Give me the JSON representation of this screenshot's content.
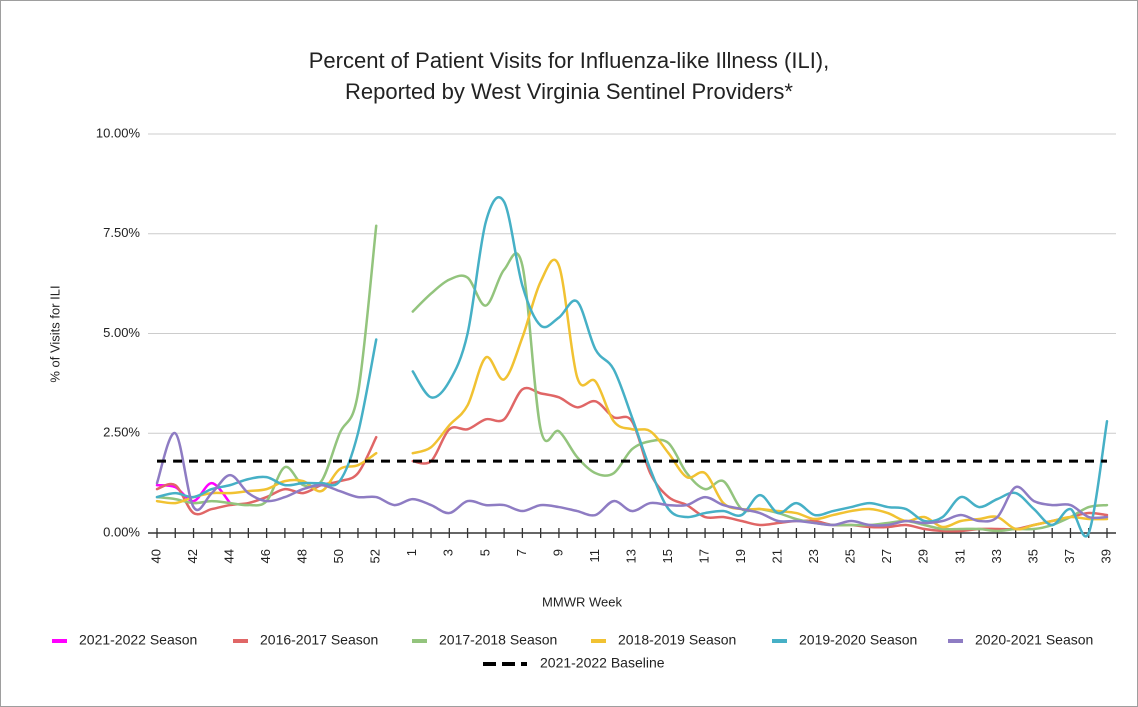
{
  "chart_data": {
    "type": "line",
    "title": [
      "Percent of Patient Visits for Influenza-like Illness (ILI),",
      "Reported by West Virginia Sentinel Providers*"
    ],
    "x_label": "MMWR Week",
    "y_label": "% of Visits for ILI",
    "categories": [
      "40",
      null,
      "42",
      null,
      "44",
      null,
      "46",
      null,
      "48",
      null,
      "50",
      null,
      "52",
      null,
      "1",
      null,
      "3",
      null,
      "5",
      null,
      "7",
      null,
      "9",
      null,
      "11",
      null,
      "13",
      null,
      "15",
      null,
      "17",
      null,
      "19",
      null,
      "21",
      null,
      "23",
      null,
      "25",
      null,
      "27",
      null,
      "29",
      null,
      "31",
      null,
      "33",
      null,
      "35",
      null,
      "37",
      null,
      "39"
    ],
    "ylim": [
      0,
      10
    ],
    "yticks": [
      {
        "value": 0,
        "label": "0.00%"
      },
      {
        "value": 2.5,
        "label": "2.50%"
      },
      {
        "value": 5,
        "label": "5.00%"
      },
      {
        "value": 7.5,
        "label": "7.50%"
      },
      {
        "value": 10,
        "label": "10.00%"
      }
    ],
    "grid": true,
    "legend": "bottom",
    "series": [
      {
        "name": "2021-2022 Season",
        "color": "#ff00ff",
        "values": [
          1.2,
          1.15,
          0.8,
          1.25,
          0.75,
          null,
          null,
          null,
          null,
          null,
          null,
          null,
          null,
          null,
          null,
          null,
          null,
          null,
          null,
          null,
          null,
          null,
          null,
          null,
          null,
          null,
          null,
          null,
          null,
          null,
          null,
          null,
          null,
          null,
          null,
          null,
          null,
          null,
          null,
          null,
          null,
          null,
          null,
          null,
          null,
          null,
          null,
          null,
          null,
          null,
          null,
          null,
          null
        ]
      },
      {
        "name": "2016-2017 Season",
        "color": "#e06666",
        "values": [
          1.1,
          1.2,
          0.5,
          0.6,
          0.7,
          0.75,
          0.9,
          1.1,
          1.0,
          1.2,
          1.3,
          1.5,
          2.4,
          null,
          1.8,
          1.8,
          2.6,
          2.6,
          2.85,
          2.85,
          3.6,
          3.5,
          3.4,
          3.15,
          3.3,
          2.9,
          2.8,
          1.5,
          0.9,
          0.7,
          0.4,
          0.4,
          0.3,
          0.2,
          0.25,
          0.3,
          0.3,
          0.2,
          0.2,
          0.15,
          0.15,
          0.2,
          0.1,
          0.05,
          0.05,
          0.1,
          0.1,
          0.1,
          0.2,
          0.3,
          0.4,
          0.5,
          0.45
        ]
      },
      {
        "name": "2017-2018 Season",
        "color": "#93c47d",
        "values": [
          0.9,
          0.85,
          0.75,
          0.8,
          0.75,
          0.7,
          0.8,
          1.65,
          1.2,
          1.3,
          2.5,
          3.5,
          7.7,
          null,
          5.55,
          6.0,
          6.35,
          6.4,
          5.7,
          6.6,
          6.7,
          2.6,
          2.55,
          1.9,
          1.5,
          1.5,
          2.1,
          2.3,
          2.25,
          1.5,
          1.1,
          1.3,
          0.6,
          0.6,
          0.5,
          0.35,
          0.25,
          0.2,
          0.2,
          0.2,
          0.25,
          0.3,
          0.2,
          0.1,
          0.1,
          0.1,
          0.05,
          0.1,
          0.1,
          0.2,
          0.4,
          0.65,
          0.7
        ]
      },
      {
        "name": "2018-2019 Season",
        "color": "#f1c232",
        "values": [
          0.8,
          0.75,
          0.9,
          1.0,
          1.0,
          1.05,
          1.1,
          1.3,
          1.3,
          1.05,
          1.6,
          1.7,
          2.0,
          null,
          2.0,
          2.15,
          2.7,
          3.2,
          4.4,
          3.85,
          4.9,
          6.3,
          6.7,
          3.9,
          3.8,
          2.8,
          2.6,
          2.55,
          2.0,
          1.4,
          1.5,
          0.75,
          0.6,
          0.6,
          0.55,
          0.5,
          0.35,
          0.45,
          0.55,
          0.6,
          0.5,
          0.3,
          0.4,
          0.15,
          0.3,
          0.35,
          0.4,
          0.1,
          0.2,
          0.3,
          0.4,
          0.35,
          0.35
        ]
      },
      {
        "name": "2019-2020 Season",
        "color": "#46b0c6",
        "values": [
          0.9,
          1.0,
          0.9,
          1.1,
          1.2,
          1.35,
          1.4,
          1.2,
          1.25,
          1.25,
          1.3,
          2.5,
          4.85,
          null,
          4.05,
          3.4,
          3.8,
          5.0,
          7.8,
          8.3,
          6.2,
          5.2,
          5.4,
          5.8,
          4.6,
          4.1,
          2.9,
          1.6,
          0.6,
          0.4,
          0.5,
          0.55,
          0.45,
          0.95,
          0.5,
          0.75,
          0.45,
          0.55,
          0.65,
          0.75,
          0.65,
          0.6,
          0.3,
          0.4,
          0.9,
          0.65,
          0.85,
          1.0,
          0.6,
          0.2,
          0.6,
          0.0,
          2.8
        ]
      },
      {
        "name": "2020-2021 Season",
        "color": "#8e7cc3",
        "values": [
          1.25,
          2.5,
          0.65,
          1.0,
          1.45,
          1.0,
          0.8,
          0.9,
          1.1,
          1.2,
          1.05,
          0.9,
          0.9,
          0.7,
          0.85,
          0.7,
          0.5,
          0.8,
          0.7,
          0.7,
          0.55,
          0.7,
          0.65,
          0.55,
          0.45,
          0.8,
          0.55,
          0.75,
          0.7,
          0.7,
          0.9,
          0.7,
          0.6,
          0.5,
          0.3,
          0.3,
          0.25,
          0.2,
          0.3,
          0.2,
          0.2,
          0.3,
          0.25,
          0.3,
          0.45,
          0.3,
          0.4,
          1.15,
          0.8,
          0.7,
          0.7,
          0.4,
          0.4
        ]
      },
      {
        "name": "2021-2022 Baseline",
        "color": "#000000",
        "dashed": true,
        "values": [
          1.8,
          1.8,
          1.8,
          1.8,
          1.8,
          1.8,
          1.8,
          1.8,
          1.8,
          1.8,
          1.8,
          1.8,
          1.8,
          1.8,
          1.8,
          1.8,
          1.8,
          1.8,
          1.8,
          1.8,
          1.8,
          1.8,
          1.8,
          1.8,
          1.8,
          1.8,
          1.8,
          1.8,
          1.8,
          1.8,
          1.8,
          1.8,
          1.8,
          1.8,
          1.8,
          1.8,
          1.8,
          1.8,
          1.8,
          1.8,
          1.8,
          1.8,
          1.8,
          1.8,
          1.8,
          1.8,
          1.8,
          1.8,
          1.8,
          1.8,
          1.8,
          1.8,
          1.8
        ]
      }
    ]
  }
}
